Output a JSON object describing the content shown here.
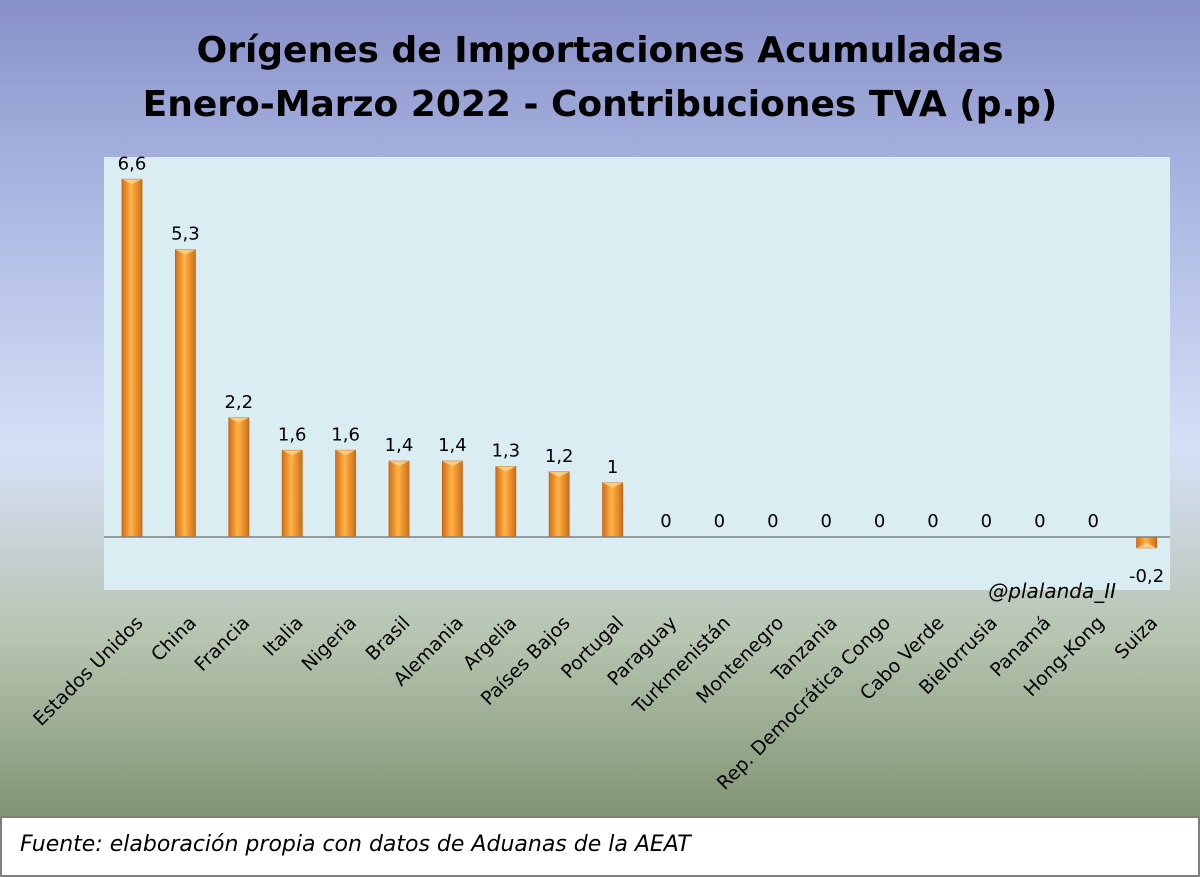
{
  "chart_data": {
    "type": "bar",
    "title": "Orígenes de Importaciones Acumuladas",
    "subtitle": "Enero-Marzo 2022 - Contribuciones TVA (p.p)",
    "categories": [
      "Estados Unidos",
      "China",
      "Francia",
      "Italia",
      "Nigeria",
      "Brasil",
      "Alemania",
      "Argelia",
      "Países Bajos",
      "Portugal",
      "Paraguay",
      "Turkmenistán",
      "Montenegro",
      "Tanzania",
      "Rep. Democrática Congo",
      "Cabo Verde",
      "Bielorrusia",
      "Panamá",
      "Hong-Kong",
      "Suiza"
    ],
    "values": [
      6.6,
      5.3,
      2.2,
      1.6,
      1.6,
      1.4,
      1.4,
      1.3,
      1.2,
      1,
      0,
      0,
      0,
      0,
      0,
      0,
      0,
      0,
      0,
      -0.2
    ],
    "value_labels": [
      "6,6",
      "5,3",
      "2,2",
      "1,6",
      "1,6",
      "1,4",
      "1,4",
      "1,3",
      "1,2",
      "1",
      "0",
      "0",
      "0",
      "0",
      "0",
      "0",
      "0",
      "0",
      "0",
      "-0,2"
    ],
    "ylim": [
      -0.2,
      6.6
    ],
    "grid": false,
    "legend": "none",
    "credit": "@plalanda_II",
    "colors": {
      "bar": "#f0952a",
      "bar_light": "#ffd28a",
      "bar_dark": "#c46410",
      "plot_bg": "#daedf2"
    }
  },
  "footer": {
    "source": "Fuente: elaboración propia con datos de Aduanas de la AEAT"
  }
}
